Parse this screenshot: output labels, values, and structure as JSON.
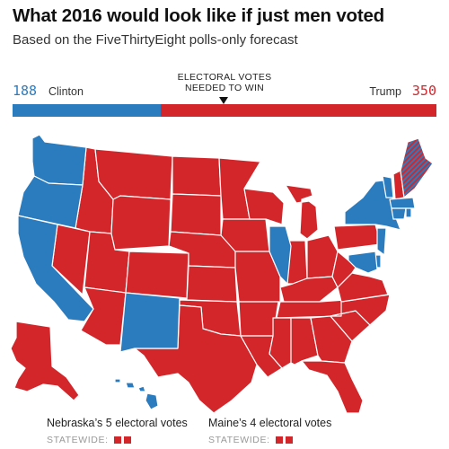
{
  "header": {
    "title": "What 2016 would look like if just men voted",
    "subtitle": "Based on the FiveThirtyEight polls-only forecast"
  },
  "electoral_bar": {
    "needed_label_line1": "ELECTORAL VOTES",
    "needed_label_line2": "NEEDED TO WIN",
    "clinton": {
      "name": "Clinton",
      "votes": "188"
    },
    "trump": {
      "name": "Trump",
      "votes": "350"
    }
  },
  "colors": {
    "democrat": "#2B7BBF",
    "republican": "#D3262B",
    "border": "#ffffff",
    "label_muted": "#999999"
  },
  "footnotes": {
    "nebraska": {
      "label": "Nebraska’s 5 electoral votes",
      "sub": "STATEWIDE:",
      "squares": 2
    },
    "maine": {
      "label": "Maine’s 4 electoral votes",
      "sub": "STATEWIDE:",
      "squares": 2
    }
  },
  "map": {
    "democrat_states": [
      "Washington",
      "Oregon",
      "California",
      "New Mexico",
      "Illinois",
      "New York",
      "Vermont",
      "Massachusetts",
      "Connecticut",
      "Rhode Island",
      "New Jersey",
      "Delaware",
      "Maryland",
      "Hawaii"
    ],
    "republican_states": [
      "Idaho",
      "Nevada",
      "Utah",
      "Arizona",
      "Montana",
      "Wyoming",
      "Colorado",
      "North Dakota",
      "South Dakota",
      "Nebraska",
      "Kansas",
      "Oklahoma",
      "Texas",
      "Minnesota",
      "Iowa",
      "Missouri",
      "Arkansas",
      "Louisiana",
      "Wisconsin",
      "Michigan",
      "Indiana",
      "Ohio",
      "Kentucky",
      "Tennessee",
      "Mississippi",
      "Alabama",
      "Georgia",
      "Florida",
      "South Carolina",
      "North Carolina",
      "Virginia",
      "West Virginia",
      "Pennsylvania",
      "New Hampshire",
      "Alaska"
    ],
    "split_states": [
      "Maine"
    ]
  }
}
